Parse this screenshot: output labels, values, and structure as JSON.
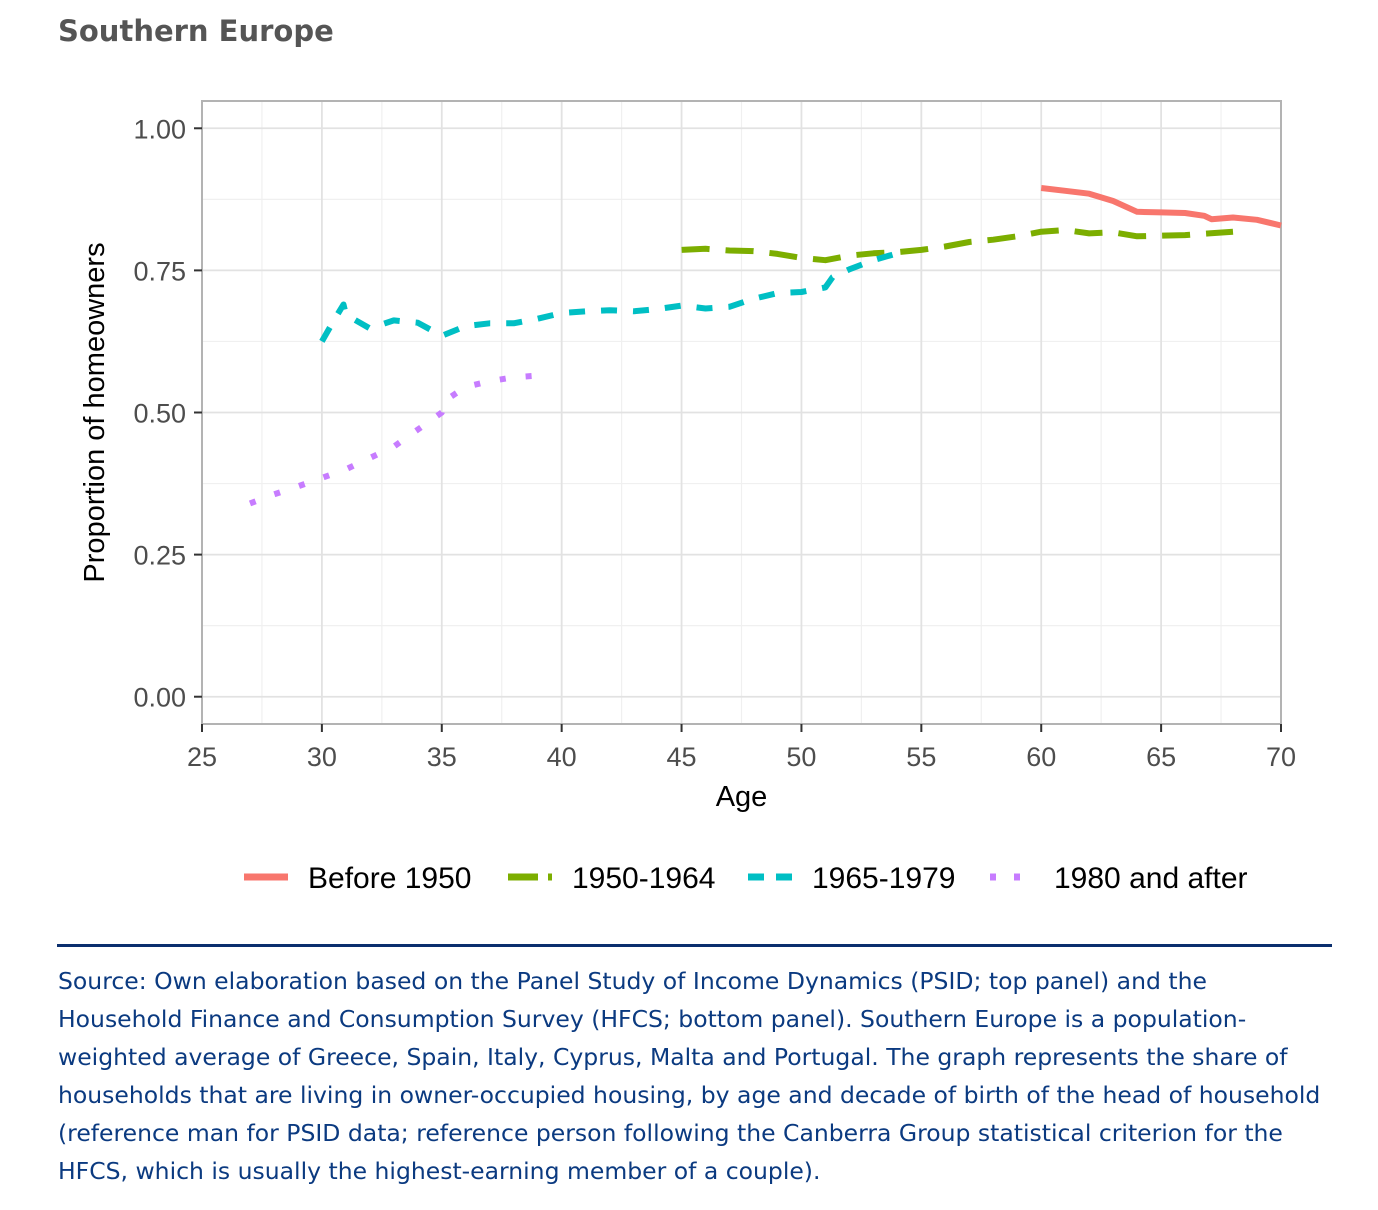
{
  "title": "Southern Europe",
  "caption": "Source: Own elaboration based on the Panel Study of Income Dynamics (PSID; top panel) and the Household Finance and Consumption Survey (HFCS; bottom panel). Southern Europe is a population-weighted average of Greece, Spain, Italy, Cyprus, Malta and Portugal. The graph represents the share of households that are living in owner-occupied housing, by age and decade of birth of the head of household (reference man for PSID data; reference person following the Canberra Group statistical criterion for the HFCS, which is usually the highest-earning member of a couple).",
  "chart_data": {
    "type": "line",
    "title": "Southern Europe",
    "xlabel": "Age",
    "ylabel": "Proportion of homeowners",
    "xlim": [
      25,
      70
    ],
    "ylim": [
      0,
      1
    ],
    "x_ticks": [
      "25",
      "30",
      "35",
      "40",
      "45",
      "50",
      "55",
      "60",
      "65",
      "70"
    ],
    "y_ticks": [
      "0.00",
      "0.25",
      "0.50",
      "0.75",
      "1.00"
    ],
    "grid": true,
    "legend_position": "bottom",
    "series": [
      {
        "name": "Before 1950",
        "color": "#f8766d",
        "dash": "solid",
        "points": [
          [
            60,
            0.895
          ],
          [
            61,
            0.89
          ],
          [
            62,
            0.885
          ],
          [
            63,
            0.872
          ],
          [
            64,
            0.853
          ],
          [
            65,
            0.852
          ],
          [
            66,
            0.851
          ],
          [
            66.8,
            0.846
          ],
          [
            67.1,
            0.84
          ],
          [
            68,
            0.843
          ],
          [
            69,
            0.839
          ],
          [
            70,
            0.829
          ]
        ]
      },
      {
        "name": "1950-1964",
        "color": "#7cae00",
        "dash": "longdash",
        "points": [
          [
            45,
            0.786
          ],
          [
            46,
            0.788
          ],
          [
            47,
            0.785
          ],
          [
            48,
            0.784
          ],
          [
            49,
            0.779
          ],
          [
            50,
            0.772
          ],
          [
            51,
            0.768
          ],
          [
            52,
            0.776
          ],
          [
            53,
            0.78
          ],
          [
            54,
            0.782
          ],
          [
            55,
            0.786
          ],
          [
            56,
            0.792
          ],
          [
            57,
            0.8
          ],
          [
            58,
            0.804
          ],
          [
            59,
            0.81
          ],
          [
            60,
            0.818
          ],
          [
            61,
            0.821
          ],
          [
            62,
            0.815
          ],
          [
            63,
            0.817
          ],
          [
            64,
            0.81
          ],
          [
            65,
            0.811
          ],
          [
            66,
            0.812
          ],
          [
            67,
            0.815
          ],
          [
            68,
            0.818
          ]
        ]
      },
      {
        "name": "1965-1979",
        "color": "#00bfc4",
        "dash": "dashed",
        "points": [
          [
            30,
            0.625
          ],
          [
            30.5,
            0.662
          ],
          [
            30.9,
            0.69
          ],
          [
            31,
            0.672
          ],
          [
            32,
            0.648
          ],
          [
            33,
            0.662
          ],
          [
            34,
            0.658
          ],
          [
            35,
            0.635
          ],
          [
            36,
            0.652
          ],
          [
            37,
            0.657
          ],
          [
            38,
            0.657
          ],
          [
            39,
            0.665
          ],
          [
            40,
            0.675
          ],
          [
            41,
            0.678
          ],
          [
            42,
            0.68
          ],
          [
            43,
            0.678
          ],
          [
            44,
            0.682
          ],
          [
            45,
            0.688
          ],
          [
            46,
            0.683
          ],
          [
            47,
            0.686
          ],
          [
            48,
            0.7
          ],
          [
            49,
            0.71
          ],
          [
            50,
            0.712
          ],
          [
            51,
            0.72
          ],
          [
            51.3,
            0.738
          ],
          [
            52,
            0.752
          ],
          [
            53,
            0.768
          ],
          [
            54,
            0.78
          ]
        ]
      },
      {
        "name": "1980 and after",
        "color": "#c77cff",
        "dash": "dotted",
        "points": [
          [
            27,
            0.34
          ],
          [
            28,
            0.356
          ],
          [
            29,
            0.37
          ],
          [
            30,
            0.385
          ],
          [
            31,
            0.4
          ],
          [
            32,
            0.42
          ],
          [
            33,
            0.44
          ],
          [
            34,
            0.47
          ],
          [
            35,
            0.5
          ],
          [
            35.1,
            0.52
          ],
          [
            36,
            0.545
          ],
          [
            37,
            0.555
          ],
          [
            38,
            0.562
          ],
          [
            39,
            0.565
          ]
        ]
      }
    ]
  }
}
